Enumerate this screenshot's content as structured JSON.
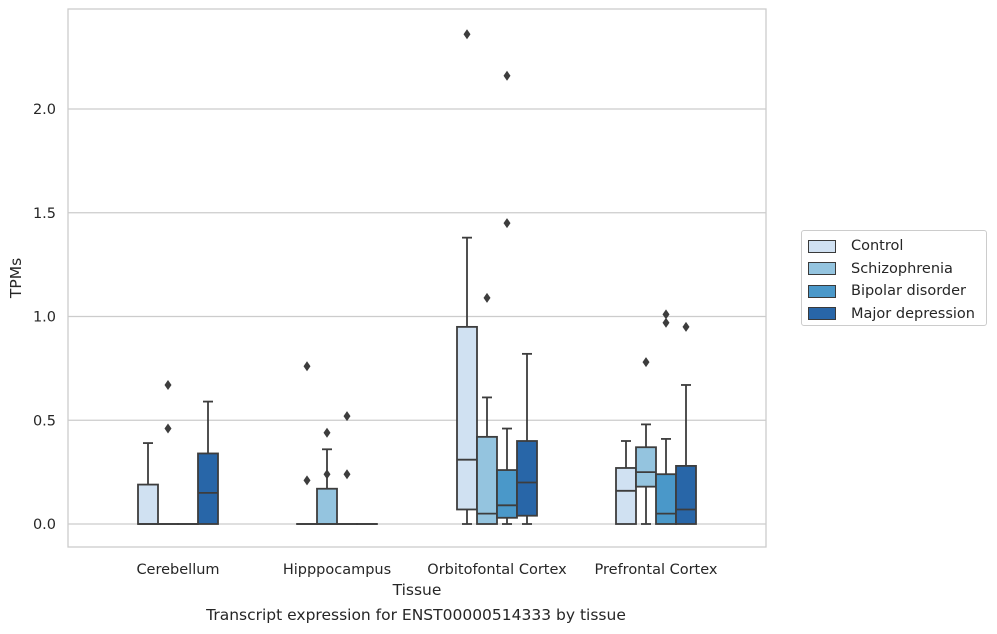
{
  "chart_data": {
    "type": "box",
    "title": "",
    "caption": "Transcript expression for ENST00000514333 by tissue",
    "xlabel": "Tissue",
    "ylabel": "TPMs",
    "ylim": [
      -0.11,
      2.48
    ],
    "yticks": [
      0.0,
      0.5,
      1.0,
      1.5,
      2.0
    ],
    "ytick_labels": [
      "0.0",
      "0.5",
      "1.0",
      "1.5",
      "2.0"
    ],
    "grid": "horizontal",
    "legend_position": "right",
    "categories": [
      "Cerebellum",
      "Hipppocampus",
      "Orbitofontal Cortex",
      "Prefrontal Cortex"
    ],
    "series": [
      {
        "name": "Control",
        "color": "#d0e1f2",
        "boxes": [
          {
            "whisker_low": 0.0,
            "q1": 0.0,
            "median": 0.0,
            "q3": 0.19,
            "whisker_high": 0.39,
            "outliers": []
          },
          {
            "whisker_low": 0.0,
            "q1": 0.0,
            "median": 0.0,
            "q3": 0.0,
            "whisker_high": 0.0,
            "outliers": [
              0.76,
              0.21
            ]
          },
          {
            "whisker_low": 0.0,
            "q1": 0.07,
            "median": 0.31,
            "q3": 0.95,
            "whisker_high": 1.38,
            "outliers": [
              2.36
            ]
          },
          {
            "whisker_low": 0.0,
            "q1": 0.0,
            "median": 0.16,
            "q3": 0.27,
            "whisker_high": 0.4,
            "outliers": []
          }
        ]
      },
      {
        "name": "Schizophrenia",
        "color": "#94c4df",
        "boxes": [
          {
            "whisker_low": 0.0,
            "q1": 0.0,
            "median": 0.0,
            "q3": 0.0,
            "whisker_high": 0.0,
            "outliers": [
              0.67,
              0.46
            ]
          },
          {
            "whisker_low": 0.0,
            "q1": 0.0,
            "median": 0.0,
            "q3": 0.17,
            "whisker_high": 0.36,
            "outliers": [
              0.44,
              0.24
            ]
          },
          {
            "whisker_low": 0.0,
            "q1": 0.0,
            "median": 0.05,
            "q3": 0.42,
            "whisker_high": 0.61,
            "outliers": [
              1.09
            ]
          },
          {
            "whisker_low": 0.0,
            "q1": 0.18,
            "median": 0.25,
            "q3": 0.37,
            "whisker_high": 0.48,
            "outliers": [
              0.78
            ]
          }
        ]
      },
      {
        "name": "Bipolar disorder",
        "color": "#4a98c9",
        "boxes": [
          {
            "whisker_low": 0.0,
            "q1": 0.0,
            "median": 0.0,
            "q3": 0.0,
            "whisker_high": 0.0,
            "outliers": []
          },
          {
            "whisker_low": 0.0,
            "q1": 0.0,
            "median": 0.0,
            "q3": 0.0,
            "whisker_high": 0.0,
            "outliers": [
              0.52,
              0.24
            ]
          },
          {
            "whisker_low": 0.0,
            "q1": 0.03,
            "median": 0.09,
            "q3": 0.26,
            "whisker_high": 0.46,
            "outliers": [
              2.16,
              1.45
            ]
          },
          {
            "whisker_low": 0.0,
            "q1": 0.0,
            "median": 0.05,
            "q3": 0.24,
            "whisker_high": 0.41,
            "outliers": [
              1.01,
              0.97
            ]
          }
        ]
      },
      {
        "name": "Major depression",
        "color": "#2866a8",
        "boxes": [
          {
            "whisker_low": 0.0,
            "q1": 0.0,
            "median": 0.15,
            "q3": 0.34,
            "whisker_high": 0.59,
            "outliers": []
          },
          {
            "whisker_low": 0.0,
            "q1": 0.0,
            "median": 0.0,
            "q3": 0.0,
            "whisker_high": 0.0,
            "outliers": []
          },
          {
            "whisker_low": 0.0,
            "q1": 0.04,
            "median": 0.2,
            "q3": 0.4,
            "whisker_high": 0.82,
            "outliers": []
          },
          {
            "whisker_low": 0.0,
            "q1": 0.0,
            "median": 0.07,
            "q3": 0.28,
            "whisker_high": 0.67,
            "outliers": [
              0.95
            ]
          }
        ]
      }
    ]
  }
}
